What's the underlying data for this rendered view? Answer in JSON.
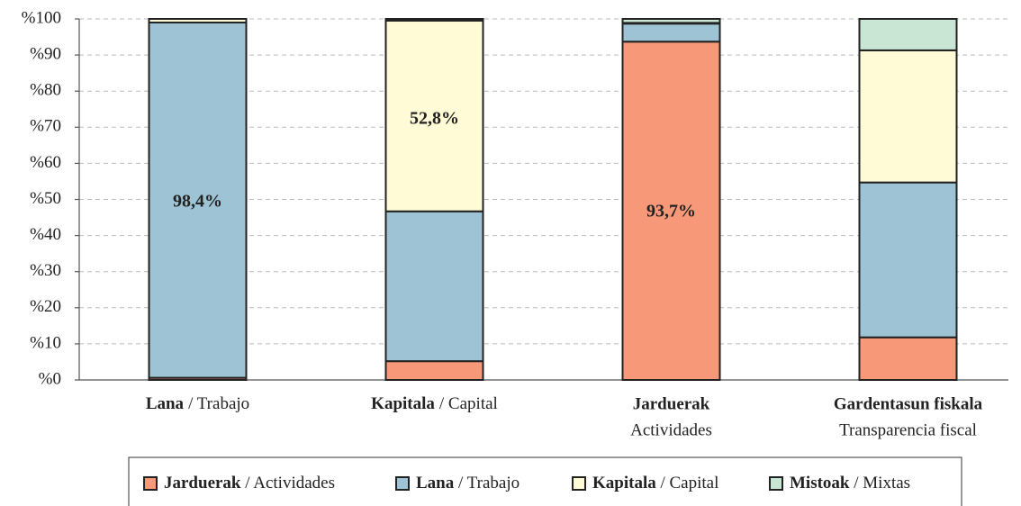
{
  "chart_data": {
    "type": "stacked_bar",
    "categories": [
      {
        "name": "Lana",
        "translation": "/ Trabajo"
      },
      {
        "name": "Kapitala",
        "translation": "/ Capital"
      },
      {
        "name": "Jarduerak",
        "translation": "Actividades"
      },
      {
        "name": "Gardentasun fiskala",
        "translation": "Transparencia fiscal"
      }
    ],
    "series": [
      {
        "name": "Jarduerak / Actividades",
        "color": "#f79878",
        "values": [
          0.6,
          5.2,
          93.7,
          11.8
        ],
        "value_labels": [
          null,
          null,
          "93,7%",
          null
        ]
      },
      {
        "name": "Lana / Trabajo",
        "color": "#9dc3d4",
        "values": [
          98.4,
          41.5,
          5.0,
          42.9
        ],
        "value_labels": [
          "98,4%",
          null,
          null,
          null
        ]
      },
      {
        "name": "Kapitala / Capital",
        "color": "#fffbd6",
        "values": [
          1.0,
          52.8,
          0.2,
          36.6
        ],
        "value_labels": [
          null,
          "52,8%",
          null,
          null
        ]
      },
      {
        "name": "Mistoak / Mixtas",
        "color": "#c9e6d5",
        "values": [
          0,
          0.5,
          1.1,
          8.7
        ],
        "value_labels": [
          null,
          null,
          null,
          null
        ]
      }
    ],
    "ylim": [
      0,
      100
    ],
    "yticks": [
      {
        "value": 0,
        "label": "%0"
      },
      {
        "value": 10,
        "label": "%10"
      },
      {
        "value": 20,
        "label": "%20"
      },
      {
        "value": 30,
        "label": "%30"
      },
      {
        "value": 40,
        "label": "%40"
      },
      {
        "value": 50,
        "label": "%50"
      },
      {
        "value": 60,
        "label": "%60"
      },
      {
        "value": 70,
        "label": "%70"
      },
      {
        "value": 80,
        "label": "%80"
      },
      {
        "value": 90,
        "label": "%90"
      },
      {
        "value": 100,
        "label": "%100"
      }
    ],
    "grid": true,
    "legend": "bottom"
  }
}
